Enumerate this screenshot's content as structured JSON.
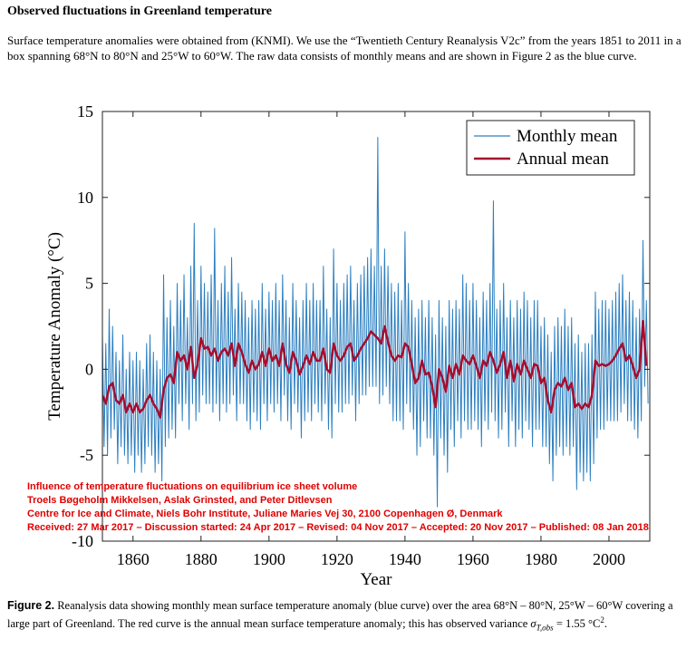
{
  "header": {
    "title": "Observed fluctuations in Greenland temperature"
  },
  "intro": "Surface temperature anomalies were obtained from  (KNMI). We use the “Twentieth Century Reanalysis V2c” from the years 1851 to 2011 in a box spanning 68°N to 80°N and 25°W to 60°W. The raw data consists of monthly means and are shown in Figure 2 as the blue curve.",
  "chart_data": {
    "type": "line",
    "xlabel": "Year",
    "ylabel": "Temperature Anomaly (°C)",
    "xlim": [
      1851,
      2012
    ],
    "xticks": [
      1860,
      1880,
      1900,
      1920,
      1940,
      1960,
      1980,
      2000
    ],
    "ylim": [
      -10,
      15
    ],
    "yticks": [
      -10,
      -5,
      0,
      5,
      10,
      15
    ],
    "legend": "upper right",
    "series": [
      {
        "name": "Monthly mean",
        "color": "#2c7fc0",
        "x": [
          1851,
          1851.5,
          1852,
          1852.5,
          1853,
          1853.5,
          1854,
          1854.5,
          1855,
          1855.5,
          1856,
          1856.5,
          1857,
          1857.5,
          1858,
          1858.5,
          1859,
          1859.5,
          1860,
          1860.5,
          1861,
          1861.5,
          1862,
          1862.5,
          1863,
          1863.5,
          1864,
          1864.5,
          1865,
          1865.5,
          1866,
          1866.5,
          1867,
          1867.5,
          1868,
          1868.5,
          1869,
          1869.5,
          1870,
          1870.5,
          1871,
          1871.5,
          1872,
          1872.5,
          1873,
          1873.5,
          1874,
          1874.5,
          1875,
          1875.5,
          1876,
          1876.5,
          1877,
          1877.5,
          1878,
          1878.5,
          1879,
          1879.5,
          1880,
          1880.5,
          1881,
          1881.5,
          1882,
          1882.5,
          1883,
          1883.5,
          1884,
          1884.5,
          1885,
          1885.5,
          1886,
          1886.5,
          1887,
          1887.5,
          1888,
          1888.5,
          1889,
          1889.5,
          1890,
          1890.5,
          1891,
          1891.5,
          1892,
          1892.5,
          1893,
          1893.5,
          1894,
          1894.5,
          1895,
          1895.5,
          1896,
          1896.5,
          1897,
          1897.5,
          1898,
          1898.5,
          1899,
          1899.5,
          1900,
          1900.5,
          1901,
          1901.5,
          1902,
          1902.5,
          1903,
          1903.5,
          1904,
          1904.5,
          1905,
          1905.5,
          1906,
          1906.5,
          1907,
          1907.5,
          1908,
          1908.5,
          1909,
          1909.5,
          1910,
          1910.5,
          1911,
          1911.5,
          1912,
          1912.5,
          1913,
          1913.5,
          1914,
          1914.5,
          1915,
          1915.5,
          1916,
          1916.5,
          1917,
          1917.5,
          1918,
          1918.5,
          1919,
          1919.5,
          1920,
          1920.5,
          1921,
          1921.5,
          1922,
          1922.5,
          1923,
          1923.5,
          1924,
          1924.5,
          1925,
          1925.5,
          1926,
          1926.5,
          1927,
          1927.5,
          1928,
          1928.5,
          1929,
          1929.5,
          1930,
          1930.5,
          1931,
          1931.5,
          1932,
          1932.5,
          1933,
          1933.5,
          1934,
          1934.5,
          1935,
          1935.5,
          1936,
          1936.5,
          1937,
          1937.5,
          1938,
          1938.5,
          1939,
          1939.5,
          1940,
          1940.5,
          1941,
          1941.5,
          1942,
          1942.5,
          1943,
          1943.5,
          1944,
          1944.5,
          1945,
          1945.5,
          1946,
          1946.5,
          1947,
          1947.5,
          1948,
          1948.5,
          1949,
          1949.5,
          1950,
          1950.5,
          1951,
          1951.5,
          1952,
          1952.5,
          1953,
          1953.5,
          1954,
          1954.5,
          1955,
          1955.5,
          1956,
          1956.5,
          1957,
          1957.5,
          1958,
          1958.5,
          1959,
          1959.5,
          1960,
          1960.5,
          1961,
          1961.5,
          1962,
          1962.5,
          1963,
          1963.5,
          1964,
          1964.5,
          1965,
          1965.5,
          1966,
          1966.5,
          1967,
          1967.5,
          1968,
          1968.5,
          1969,
          1969.5,
          1970,
          1970.5,
          1971,
          1971.5,
          1972,
          1972.5,
          1973,
          1973.5,
          1974,
          1974.5,
          1975,
          1975.5,
          1976,
          1976.5,
          1977,
          1977.5,
          1978,
          1978.5,
          1979,
          1979.5,
          1980,
          1980.5,
          1981,
          1981.5,
          1982,
          1982.5,
          1983,
          1983.5,
          1984,
          1984.5,
          1985,
          1985.5,
          1986,
          1986.5,
          1987,
          1987.5,
          1988,
          1988.5,
          1989,
          1989.5,
          1990,
          1990.5,
          1991,
          1991.5,
          1992,
          1992.5,
          1993,
          1993.5,
          1994,
          1994.5,
          1995,
          1995.5,
          1996,
          1996.5,
          1997,
          1997.5,
          1998,
          1998.5,
          1999,
          1999.5,
          2000,
          2000.5,
          2001,
          2001.5,
          2002,
          2002.5,
          2003,
          2003.5,
          2004,
          2004.5,
          2005,
          2005.5,
          2006,
          2006.5,
          2007,
          2007.5,
          2008,
          2008.5,
          2009,
          2009.5,
          2010,
          2010.5,
          2011,
          2011.5
        ],
        "values": [
          2,
          -4.5,
          1.5,
          -5,
          3.5,
          -4,
          2.5,
          -3.5,
          1,
          -5.5,
          0.5,
          -4.5,
          2,
          -5,
          0,
          -5.5,
          1,
          -5,
          0.5,
          -6,
          1,
          -5,
          0.5,
          -6,
          0,
          -5.5,
          1.5,
          -4.5,
          2,
          -5,
          1,
          -6,
          0.5,
          -5.5,
          0,
          -6.5,
          5.5,
          -4.5,
          3,
          -4,
          4,
          -3.5,
          2.5,
          -4,
          5,
          -2,
          4,
          -3,
          5.5,
          -2,
          3,
          -3.5,
          6,
          -2,
          8.5,
          -3,
          4,
          -2.5,
          6,
          -1.5,
          5,
          -2,
          4.5,
          -2,
          5.5,
          -2.5,
          8.2,
          -2,
          4,
          -3,
          5,
          -2,
          6,
          -2.5,
          4.5,
          -2,
          6.5,
          -1.5,
          3.5,
          -3,
          5,
          -2,
          4.5,
          -2,
          4,
          -3,
          3,
          -3.5,
          4,
          -2.5,
          3.5,
          -3,
          4,
          -3.5,
          5,
          -2,
          3.5,
          -3,
          4.5,
          -2,
          4,
          -2.5,
          5,
          -2,
          4,
          -3,
          5.5,
          -1.5,
          4,
          -3,
          3,
          -3.5,
          5,
          -2,
          4,
          -2.5,
          3,
          -4,
          4,
          -3,
          5,
          -2.5,
          4,
          -3,
          5,
          -2,
          4,
          -2.5,
          4,
          -3,
          6,
          -2,
          3.5,
          -3.5,
          3,
          -4,
          7,
          -2,
          5,
          -2.5,
          4,
          -2.5,
          5,
          -2,
          5.5,
          -2,
          6,
          -1.5,
          4,
          -3,
          5,
          -2,
          5.5,
          -1.5,
          6,
          -1.5,
          6.5,
          -1,
          7,
          -1,
          6,
          -1,
          13.5,
          -2,
          6,
          -1.5,
          7,
          -1,
          6,
          -2,
          5,
          -3,
          4.5,
          -3,
          5,
          -3,
          4,
          -3.5,
          8,
          -2,
          5,
          -2.5,
          4,
          -3.5,
          3,
          -5,
          3.5,
          -4.5,
          4,
          -3,
          3,
          -4,
          4,
          -4,
          3,
          -5,
          2,
          -8,
          4,
          -4,
          3,
          -5,
          2.5,
          -6,
          4,
          -3.5,
          3.5,
          -4.5,
          4,
          -3,
          3.5,
          -4,
          5.5,
          -3,
          5,
          -3.5,
          4,
          -3.5,
          5,
          -3,
          4,
          -3.5,
          3,
          -4.5,
          4.5,
          -3,
          4,
          -3.5,
          5,
          -2.5,
          9.8,
          -3,
          3.5,
          -4,
          4,
          -3.5,
          5,
          -2.5,
          3,
          -4.5,
          4,
          -3,
          3,
          -4.5,
          4,
          -3.5,
          3.5,
          -4,
          4.5,
          -3,
          4,
          -3.5,
          3,
          -4.5,
          4,
          -3.5,
          4,
          -3.5,
          2.5,
          -4.5,
          3,
          -4.5,
          2,
          -5.5,
          1,
          -6.5,
          2.5,
          -5,
          3,
          -4.5,
          2.5,
          -5,
          3.5,
          -4.5,
          2.5,
          -5,
          3,
          -4.5,
          1.5,
          -7,
          2,
          -6,
          1,
          -6.5,
          1.5,
          -6,
          1.5,
          -6.5,
          2,
          -5.5,
          4.5,
          -4,
          3.5,
          -3.5,
          4,
          -3.5,
          4,
          -3,
          3.5,
          -3,
          4,
          -3,
          4.5,
          -3,
          5,
          -2.5,
          5.5,
          -2,
          4,
          -3,
          4.5,
          -3,
          4,
          -3.5,
          3,
          -4,
          3.5,
          -3,
          7.5,
          -1,
          4,
          -2
        ]
      },
      {
        "name": "Annual mean",
        "color": "#a50d2e",
        "x": [
          1851,
          1852,
          1853,
          1854,
          1855,
          1856,
          1857,
          1858,
          1859,
          1860,
          1861,
          1862,
          1863,
          1864,
          1865,
          1866,
          1867,
          1868,
          1869,
          1870,
          1871,
          1872,
          1873,
          1874,
          1875,
          1876,
          1877,
          1878,
          1879,
          1880,
          1881,
          1882,
          1883,
          1884,
          1885,
          1886,
          1887,
          1888,
          1889,
          1890,
          1891,
          1892,
          1893,
          1894,
          1895,
          1896,
          1897,
          1898,
          1899,
          1900,
          1901,
          1902,
          1903,
          1904,
          1905,
          1906,
          1907,
          1908,
          1909,
          1910,
          1911,
          1912,
          1913,
          1914,
          1915,
          1916,
          1917,
          1918,
          1919,
          1920,
          1921,
          1922,
          1923,
          1924,
          1925,
          1926,
          1927,
          1928,
          1929,
          1930,
          1931,
          1932,
          1933,
          1934,
          1935,
          1936,
          1937,
          1938,
          1939,
          1940,
          1941,
          1942,
          1943,
          1944,
          1945,
          1946,
          1947,
          1948,
          1949,
          1950,
          1951,
          1952,
          1953,
          1954,
          1955,
          1956,
          1957,
          1958,
          1959,
          1960,
          1961,
          1962,
          1963,
          1964,
          1965,
          1966,
          1967,
          1968,
          1969,
          1970,
          1971,
          1972,
          1973,
          1974,
          1975,
          1976,
          1977,
          1978,
          1979,
          1980,
          1981,
          1982,
          1983,
          1984,
          1985,
          1986,
          1987,
          1988,
          1989,
          1990,
          1991,
          1992,
          1993,
          1994,
          1995,
          1996,
          1997,
          1998,
          1999,
          2000,
          2001,
          2002,
          2003,
          2004,
          2005,
          2006,
          2007,
          2008,
          2009,
          2010,
          2011
        ],
        "values": [
          -1.5,
          -2,
          -1,
          -0.8,
          -1.8,
          -2,
          -1.5,
          -2.5,
          -2,
          -2.5,
          -2,
          -2.5,
          -2.3,
          -1.8,
          -1.5,
          -2,
          -2.3,
          -2.8,
          -1.2,
          -0.5,
          -0.3,
          -0.8,
          1,
          0.5,
          0.8,
          0,
          1.3,
          -0.5,
          0.3,
          1.8,
          1.2,
          1.3,
          0.8,
          1.2,
          0.5,
          1,
          1.2,
          0.8,
          1.5,
          0.2,
          1.5,
          1,
          0.3,
          -0.2,
          0.5,
          0,
          0.3,
          1,
          0.2,
          1.2,
          0.5,
          0.8,
          0.2,
          1.5,
          0.3,
          -0.2,
          1,
          0.5,
          -0.3,
          0.2,
          0.8,
          0.3,
          1,
          0.5,
          0.5,
          1.2,
          0,
          -0.2,
          1.5,
          0.8,
          0.5,
          0.8,
          1.3,
          1.5,
          0.5,
          0.8,
          1.2,
          1.5,
          1.8,
          2.2,
          2,
          1.8,
          1.5,
          2.5,
          1.6,
          0.8,
          0.5,
          0.8,
          0.7,
          1.5,
          1.3,
          0.3,
          -0.8,
          -0.5,
          0.5,
          -0.3,
          -0.2,
          -1,
          -2.2,
          0,
          -0.5,
          -1.3,
          0.2,
          -0.5,
          0.3,
          -0.3,
          0.8,
          0.5,
          0.3,
          0.8,
          0.2,
          -0.5,
          0.5,
          0.2,
          1,
          0.5,
          -0.2,
          0.3,
          1,
          -0.5,
          0.5,
          -0.7,
          0.3,
          -0.3,
          0.5,
          0,
          -0.5,
          0.3,
          0.2,
          -0.8,
          -0.5,
          -1.8,
          -2.5,
          -1.2,
          -0.8,
          -1,
          -0.5,
          -1.2,
          -0.8,
          -2.2,
          -2,
          -2.3,
          -2,
          -2.2,
          -1.5,
          0.5,
          0.2,
          0.3,
          0.2,
          0.3,
          0.5,
          0.8,
          1.2,
          1.5,
          0.5,
          0.8,
          0.2,
          -0.5,
          0,
          2.8,
          0.2
        ]
      }
    ]
  },
  "watermark": [
    "Influence of temperature fluctuations on equilibrium ice sheet volume",
    "Troels Bøgeholm Mikkelsen, Aslak Grinsted, and Peter Ditlevsen",
    "Centre for Ice and Climate, Niels Bohr Institute, Juliane Maries Vej 30, 2100 Copenhagen Ø, Denmark",
    "Received: 27 Mar 2017 – Discussion started: 24 Apr 2017 – Revised: 04 Nov 2017 – Accepted: 20 Nov 2017 – Published: 08 Jan 2018"
  ],
  "caption": {
    "label": "Figure 2.",
    "text": " Reanalysis data showing monthly mean surface temperature anomaly (blue curve) over the area 68°N – 80°N, 25°W – 60°W covering a large part of Greenland. The red curve is the annual mean surface temperature anomaly; this has observed variance ",
    "symbol": "σ",
    "subscript": "T,obs",
    "value": " = 1.55 °C",
    "superscript": "2",
    "end": "."
  }
}
